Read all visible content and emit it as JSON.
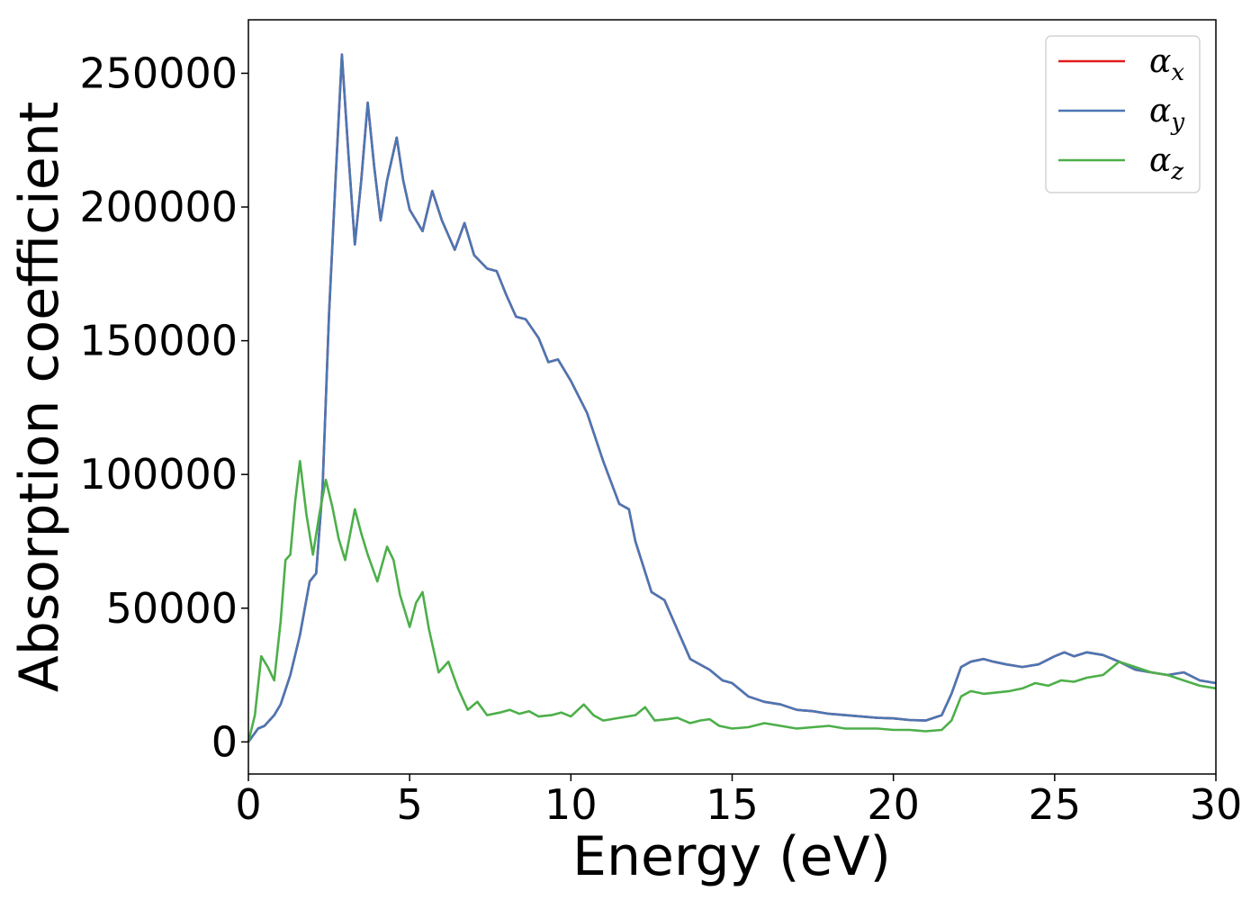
{
  "chart_data": {
    "type": "line",
    "title": "",
    "xlabel": "Energy (eV)",
    "ylabel": "Absorption coefficient",
    "xlim": [
      0,
      30
    ],
    "ylim": [
      -12000,
      270000
    ],
    "xticks": [
      0,
      5,
      10,
      15,
      20,
      25,
      30
    ],
    "xtick_labels": [
      "0",
      "5",
      "10",
      "15",
      "20",
      "25",
      "30"
    ],
    "yticks": [
      0,
      50000,
      100000,
      150000,
      200000,
      250000
    ],
    "ytick_labels": [
      "0",
      "50000",
      "100000",
      "150000",
      "200000",
      "250000"
    ],
    "grid": false,
    "legend_position": "top-right",
    "legend": [
      {
        "symbol": "α",
        "subscript": "x",
        "color": "#e41a1c"
      },
      {
        "symbol": "α",
        "subscript": "y",
        "color": "#4a77b4"
      },
      {
        "symbol": "α",
        "subscript": "z",
        "color": "#4daf4a"
      }
    ],
    "series": [
      {
        "key": "alpha_x",
        "color": "#e41a1c",
        "x": [
          0,
          0.3,
          0.5,
          0.8,
          1.0,
          1.3,
          1.6,
          1.9,
          2.1,
          2.3,
          2.5,
          2.7,
          2.9,
          3.1,
          3.3,
          3.5,
          3.7,
          3.9,
          4.1,
          4.3,
          4.6,
          4.8,
          5.0,
          5.4,
          5.7,
          6.0,
          6.4,
          6.7,
          7.0,
          7.4,
          7.7,
          8.0,
          8.3,
          8.6,
          9.0,
          9.3,
          9.6,
          10.0,
          10.5,
          11.0,
          11.5,
          11.8,
          12.0,
          12.5,
          12.9,
          13.3,
          13.7,
          14.0,
          14.3,
          14.7,
          15.0,
          15.5,
          16.0,
          16.5,
          17.0,
          17.5,
          18.0,
          18.5,
          19.0,
          19.5,
          20.0,
          20.5,
          21.0,
          21.5,
          21.8,
          22.1,
          22.4,
          22.8,
          23.1,
          23.5,
          24.0,
          24.5,
          25.0,
          25.3,
          25.6,
          26.0,
          26.5,
          27.0,
          27.5,
          28.0,
          28.5,
          29.0,
          29.5,
          30.0
        ],
        "y": [
          0,
          5000,
          6000,
          10000,
          14000,
          25000,
          40000,
          60000,
          63000,
          95000,
          160000,
          210000,
          257000,
          220000,
          186000,
          210000,
          239000,
          215000,
          195000,
          210000,
          226000,
          210000,
          199000,
          191000,
          206000,
          195000,
          184000,
          194000,
          182000,
          177000,
          176000,
          167000,
          159000,
          158000,
          151000,
          142000,
          143000,
          135000,
          123000,
          105000,
          89000,
          87000,
          75000,
          56000,
          53000,
          42000,
          31000,
          29000,
          27000,
          23000,
          22000,
          17000,
          15000,
          14000,
          12000,
          11500,
          10500,
          10000,
          9500,
          9000,
          8800,
          8200,
          8000,
          10000,
          18000,
          28000,
          30000,
          31000,
          30000,
          29000,
          28000,
          29000,
          32000,
          33500,
          32000,
          33500,
          32500,
          30000,
          27000,
          26000,
          25000,
          26000,
          23000,
          22000
        ]
      },
      {
        "key": "alpha_y",
        "color": "#4a77b4",
        "x": [
          0,
          0.3,
          0.5,
          0.8,
          1.0,
          1.3,
          1.6,
          1.9,
          2.1,
          2.3,
          2.5,
          2.7,
          2.9,
          3.1,
          3.3,
          3.5,
          3.7,
          3.9,
          4.1,
          4.3,
          4.6,
          4.8,
          5.0,
          5.4,
          5.7,
          6.0,
          6.4,
          6.7,
          7.0,
          7.4,
          7.7,
          8.0,
          8.3,
          8.6,
          9.0,
          9.3,
          9.6,
          10.0,
          10.5,
          11.0,
          11.5,
          11.8,
          12.0,
          12.5,
          12.9,
          13.3,
          13.7,
          14.0,
          14.3,
          14.7,
          15.0,
          15.5,
          16.0,
          16.5,
          17.0,
          17.5,
          18.0,
          18.5,
          19.0,
          19.5,
          20.0,
          20.5,
          21.0,
          21.5,
          21.8,
          22.1,
          22.4,
          22.8,
          23.1,
          23.5,
          24.0,
          24.5,
          25.0,
          25.3,
          25.6,
          26.0,
          26.5,
          27.0,
          27.5,
          28.0,
          28.5,
          29.0,
          29.5,
          30.0
        ],
        "y": [
          0,
          5000,
          6000,
          10000,
          14000,
          25000,
          40000,
          60000,
          63000,
          95000,
          160000,
          210000,
          257000,
          220000,
          186000,
          210000,
          239000,
          215000,
          195000,
          210000,
          226000,
          210000,
          199000,
          191000,
          206000,
          195000,
          184000,
          194000,
          182000,
          177000,
          176000,
          167000,
          159000,
          158000,
          151000,
          142000,
          143000,
          135000,
          123000,
          105000,
          89000,
          87000,
          75000,
          56000,
          53000,
          42000,
          31000,
          29000,
          27000,
          23000,
          22000,
          17000,
          15000,
          14000,
          12000,
          11500,
          10500,
          10000,
          9500,
          9000,
          8800,
          8200,
          8000,
          10000,
          18000,
          28000,
          30000,
          31000,
          30000,
          29000,
          28000,
          29000,
          32000,
          33500,
          32000,
          33500,
          32500,
          30000,
          27000,
          26000,
          25000,
          26000,
          23000,
          22000
        ]
      },
      {
        "key": "alpha_z",
        "color": "#4daf4a",
        "x": [
          0,
          0.2,
          0.4,
          0.6,
          0.8,
          1.0,
          1.15,
          1.3,
          1.45,
          1.6,
          1.8,
          2.0,
          2.2,
          2.4,
          2.6,
          2.8,
          3.0,
          3.3,
          3.5,
          3.7,
          4.0,
          4.3,
          4.5,
          4.7,
          5.0,
          5.2,
          5.4,
          5.6,
          5.9,
          6.2,
          6.5,
          6.8,
          7.1,
          7.4,
          7.8,
          8.1,
          8.4,
          8.7,
          9.0,
          9.4,
          9.7,
          10.0,
          10.4,
          10.7,
          11.0,
          11.5,
          12.0,
          12.3,
          12.6,
          13.0,
          13.3,
          13.7,
          14.0,
          14.3,
          14.6,
          15.0,
          15.5,
          16.0,
          16.5,
          17.0,
          17.5,
          18.0,
          18.5,
          19.0,
          19.5,
          20.0,
          20.5,
          21.0,
          21.5,
          21.8,
          22.1,
          22.4,
          22.8,
          23.2,
          23.6,
          24.0,
          24.4,
          24.8,
          25.2,
          25.6,
          26.0,
          26.5,
          27.0,
          27.5,
          28.0,
          28.5,
          29.0,
          29.5,
          30.0
        ],
        "y": [
          0,
          10000,
          32000,
          28000,
          23000,
          45000,
          68000,
          70000,
          90000,
          105000,
          85000,
          70000,
          85000,
          98000,
          88000,
          76000,
          68000,
          87000,
          78000,
          70000,
          60000,
          73000,
          68000,
          55000,
          43000,
          52000,
          56000,
          42000,
          26000,
          30000,
          20000,
          12000,
          15000,
          10000,
          11000,
          12000,
          10500,
          11500,
          9500,
          10000,
          11000,
          9500,
          14000,
          10000,
          8000,
          9000,
          10000,
          13000,
          8000,
          8500,
          9000,
          7000,
          8000,
          8500,
          6000,
          5000,
          5500,
          7000,
          6000,
          5000,
          5500,
          6000,
          5000,
          5000,
          5000,
          4500,
          4500,
          4000,
          4500,
          8000,
          17000,
          19000,
          18000,
          18500,
          19000,
          20000,
          22000,
          21000,
          23000,
          22500,
          24000,
          25000,
          30000,
          28000,
          26000,
          25000,
          23000,
          21000,
          20000
        ]
      }
    ]
  }
}
